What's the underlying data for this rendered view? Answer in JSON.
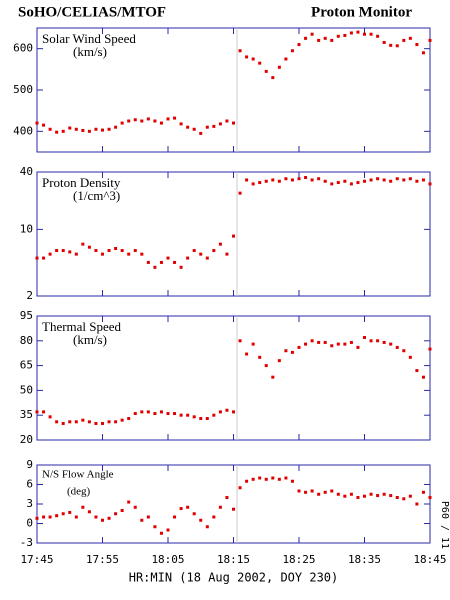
{
  "header": {
    "left": "SoHO/CELIAS/MTOF",
    "right": "Proton Monitor"
  },
  "side_note": "P60 / 11",
  "chart_data": [
    {
      "type": "scatter",
      "title": "Solar Wind Speed",
      "unit": "(km/s)",
      "color": "#e00000",
      "x": [
        "17:45",
        "17:46",
        "17:47",
        "17:48",
        "17:49",
        "17:50",
        "17:51",
        "17:52",
        "17:53",
        "17:54",
        "17:55",
        "17:56",
        "17:57",
        "17:58",
        "17:59",
        "18:00",
        "18:01",
        "18:02",
        "18:03",
        "18:04",
        "18:05",
        "18:06",
        "18:07",
        "18:08",
        "18:09",
        "18:10",
        "18:11",
        "18:12",
        "18:13",
        "18:14",
        "18:15",
        "18:16",
        "18:17",
        "18:18",
        "18:19",
        "18:20",
        "18:21",
        "18:22",
        "18:23",
        "18:24",
        "18:25",
        "18:26",
        "18:27",
        "18:28",
        "18:29",
        "18:30",
        "18:31",
        "18:32",
        "18:33",
        "18:34",
        "18:35",
        "18:36",
        "18:37",
        "18:38",
        "18:39",
        "18:40",
        "18:41",
        "18:42",
        "18:43",
        "18:44",
        "18:45"
      ],
      "values": [
        420,
        415,
        405,
        398,
        400,
        408,
        405,
        402,
        400,
        405,
        403,
        405,
        410,
        420,
        425,
        428,
        425,
        430,
        425,
        420,
        430,
        432,
        418,
        410,
        405,
        395,
        410,
        412,
        418,
        425,
        420,
        595,
        580,
        575,
        565,
        545,
        530,
        555,
        575,
        595,
        610,
        625,
        635,
        620,
        625,
        620,
        630,
        632,
        638,
        640,
        635,
        635,
        630,
        615,
        608,
        607,
        620,
        625,
        610,
        590,
        620
      ],
      "xlim": [
        "17:45",
        "18:45"
      ],
      "ylim": [
        350,
        650
      ],
      "yticks": [
        400,
        500,
        600
      ]
    },
    {
      "type": "scatter",
      "title": "Proton Density",
      "unit": "(1/cm^3)",
      "color": "#e00000",
      "log_scale": true,
      "x": [
        "17:45",
        "17:46",
        "17:47",
        "17:48",
        "17:49",
        "17:50",
        "17:51",
        "17:52",
        "17:53",
        "17:54",
        "17:55",
        "17:56",
        "17:57",
        "17:58",
        "17:59",
        "18:00",
        "18:01",
        "18:02",
        "18:03",
        "18:04",
        "18:05",
        "18:06",
        "18:07",
        "18:08",
        "18:09",
        "18:10",
        "18:11",
        "18:12",
        "18:13",
        "18:14",
        "18:15",
        "18:16",
        "18:17",
        "18:18",
        "18:19",
        "18:20",
        "18:21",
        "18:22",
        "18:23",
        "18:24",
        "18:25",
        "18:26",
        "18:27",
        "18:28",
        "18:29",
        "18:30",
        "18:31",
        "18:32",
        "18:33",
        "18:34",
        "18:35",
        "18:36",
        "18:37",
        "18:38",
        "18:39",
        "18:40",
        "18:41",
        "18:42",
        "18:43",
        "18:44",
        "18:45"
      ],
      "values": [
        5,
        5,
        5.5,
        6,
        6,
        5.8,
        5.5,
        7,
        6.5,
        6,
        5.5,
        6,
        6.3,
        6,
        5.5,
        6,
        5.5,
        4.5,
        4,
        4.5,
        5,
        4.5,
        4,
        5,
        6,
        5.5,
        5,
        6,
        7,
        5.5,
        8.5,
        24,
        33,
        30,
        31,
        32,
        33,
        32,
        34,
        33,
        34,
        35,
        33,
        34,
        32,
        30,
        31,
        32,
        30,
        31,
        32,
        33,
        34,
        33,
        32,
        34,
        33,
        34,
        32,
        33,
        30
      ],
      "xlim": [
        "17:45",
        "18:45"
      ],
      "ylim": [
        2,
        40
      ],
      "yticks": [
        2,
        10,
        40
      ]
    },
    {
      "type": "scatter",
      "title": "Thermal Speed",
      "unit": "(km/s)",
      "color": "#e00000",
      "x": [
        "17:45",
        "17:46",
        "17:47",
        "17:48",
        "17:49",
        "17:50",
        "17:51",
        "17:52",
        "17:53",
        "17:54",
        "17:55",
        "17:56",
        "17:57",
        "17:58",
        "17:59",
        "18:00",
        "18:01",
        "18:02",
        "18:03",
        "18:04",
        "18:05",
        "18:06",
        "18:07",
        "18:08",
        "18:09",
        "18:10",
        "18:11",
        "18:12",
        "18:13",
        "18:14",
        "18:15",
        "18:16",
        "18:17",
        "18:18",
        "18:19",
        "18:20",
        "18:21",
        "18:22",
        "18:23",
        "18:24",
        "18:25",
        "18:26",
        "18:27",
        "18:28",
        "18:29",
        "18:30",
        "18:31",
        "18:32",
        "18:33",
        "18:34",
        "18:35",
        "18:36",
        "18:37",
        "18:38",
        "18:39",
        "18:40",
        "18:41",
        "18:42",
        "18:43",
        "18:44",
        "18:45"
      ],
      "values": [
        37,
        37,
        34,
        31,
        30,
        31,
        31,
        32,
        31,
        30,
        30,
        31,
        31,
        32,
        33,
        36,
        37,
        37,
        36,
        37,
        36,
        36,
        35,
        35,
        34,
        33,
        33,
        35,
        37,
        38,
        37,
        80,
        72,
        78,
        70,
        65,
        58,
        68,
        74,
        73,
        76,
        78,
        80,
        79,
        79,
        77,
        78,
        78,
        79,
        76,
        82,
        80,
        80,
        79,
        78,
        76,
        74,
        70,
        62,
        58,
        75
      ],
      "xlim": [
        "17:45",
        "18:45"
      ],
      "ylim": [
        20,
        95
      ],
      "yticks": [
        20,
        35,
        50,
        65,
        80,
        95
      ]
    },
    {
      "type": "scatter",
      "title": "N/S Flow Angle",
      "unit": "(deg)",
      "color": "#e00000",
      "x": [
        "17:45",
        "17:46",
        "17:47",
        "17:48",
        "17:49",
        "17:50",
        "17:51",
        "17:52",
        "17:53",
        "17:54",
        "17:55",
        "17:56",
        "17:57",
        "17:58",
        "17:59",
        "18:00",
        "18:01",
        "18:02",
        "18:03",
        "18:04",
        "18:05",
        "18:06",
        "18:07",
        "18:08",
        "18:09",
        "18:10",
        "18:11",
        "18:12",
        "18:13",
        "18:14",
        "18:15",
        "18:16",
        "18:17",
        "18:18",
        "18:19",
        "18:20",
        "18:21",
        "18:22",
        "18:23",
        "18:24",
        "18:25",
        "18:26",
        "18:27",
        "18:28",
        "18:29",
        "18:30",
        "18:31",
        "18:32",
        "18:33",
        "18:34",
        "18:35",
        "18:36",
        "18:37",
        "18:38",
        "18:39",
        "18:40",
        "18:41",
        "18:42",
        "18:43",
        "18:44",
        "18:45"
      ],
      "values": [
        0.8,
        1,
        1,
        1.2,
        1.5,
        1.7,
        1,
        2.5,
        1.8,
        1,
        0.5,
        0.8,
        1.5,
        2,
        3.3,
        2.5,
        0.5,
        1,
        -0.5,
        -1.5,
        -1,
        1,
        2.3,
        2.5,
        1.5,
        0.5,
        -0.5,
        1,
        2.5,
        4,
        2.2,
        5.5,
        6.5,
        6.8,
        7,
        6.8,
        7,
        6.8,
        7,
        6.5,
        5,
        4.8,
        5,
        4.5,
        4.8,
        5,
        4.5,
        4.2,
        4.5,
        4,
        4.2,
        4.5,
        4.3,
        4.5,
        4.3,
        4,
        3.8,
        4.2,
        3,
        4.8,
        4
      ],
      "xlim": [
        "17:45",
        "18:45"
      ],
      "ylim": [
        -3,
        9
      ],
      "yticks": [
        -3,
        0,
        3,
        6,
        9
      ],
      "xticks": [
        "17:45",
        "17:55",
        "18:05",
        "18:15",
        "18:25",
        "18:35",
        "18:45"
      ],
      "xlabel": "HR:MIN (18 Aug 2002, DOY 230)"
    }
  ]
}
